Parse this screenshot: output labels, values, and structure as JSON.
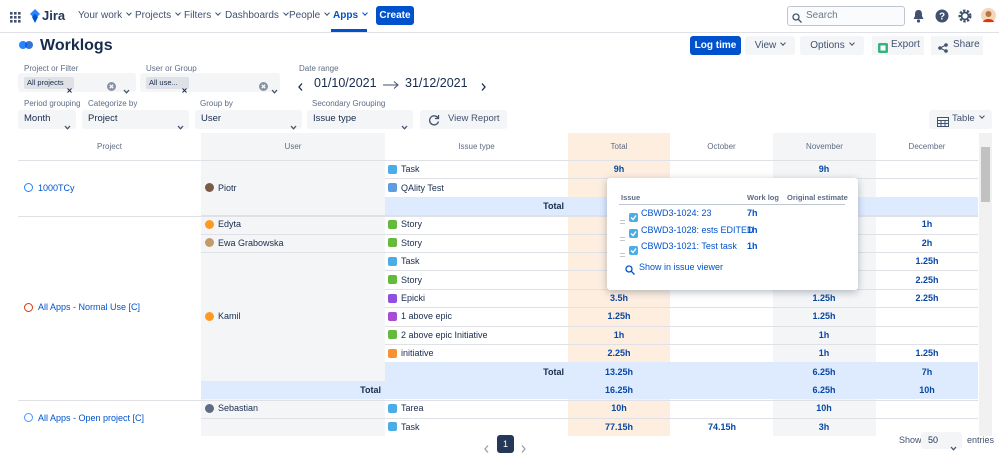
{
  "nav": {
    "product": "Jira",
    "items": [
      "Your work",
      "Projects",
      "Filters",
      "Dashboards",
      "People",
      "Apps"
    ],
    "create": "Create",
    "search": "Search"
  },
  "header": {
    "title": "Worklogs",
    "log_time": "Log time",
    "view": "View",
    "options": "Options",
    "export": "Export",
    "share": "Share"
  },
  "filters": {
    "project_label": "Project or Filter",
    "project_chip": "All projects",
    "user_label": "User or Group",
    "user_chip": "All use...",
    "date_label": "Date range",
    "date_start": "01/10/2021",
    "date_end": "31/12/2021"
  },
  "grouping": [
    {
      "label": "Period grouping",
      "value": "Month"
    },
    {
      "label": "Categorize by",
      "value": "Project"
    },
    {
      "label": "Group by",
      "value": "User"
    },
    {
      "label": "Secondary Grouping",
      "value": "Issue type"
    }
  ],
  "view_report": "View Report",
  "table_toggle": "Table",
  "table": {
    "columns": [
      "Project",
      "User",
      "Issue type",
      "Total",
      "October",
      "November",
      "December"
    ],
    "groups": [
      {
        "project": "1000TCy",
        "icon_color": "#2684ff",
        "users": [
          {
            "user": "Piotr",
            "avatar_color": "#7a5a48",
            "rows": [
              {
                "issue": "Task",
                "icon_color": "#4bade8",
                "values": [
                  "9h",
                  null,
                  "9h",
                  null
                ]
              },
              {
                "issue": "QAlity Test",
                "icon_color": "#5e9ee0"
              }
            ],
            "total": {
              "label": "Total"
            }
          }
        ]
      },
      {
        "project": "All Apps - Normal Use [C]",
        "icon_color": "#de350b",
        "users": [
          {
            "user": "Edyta",
            "avatar_color": "#ff991f",
            "rows": [
              {
                "issue": "Story",
                "icon_color": "#63ba3c",
                "values": [
                  null,
                  null,
                  null,
                  "1h"
                ]
              }
            ]
          },
          {
            "user": "Ewa Grabowska",
            "avatar_color": "#c49a6c",
            "rows": [
              {
                "issue": "Story",
                "icon_color": "#63ba3c",
                "values": [
                  null,
                  null,
                  null,
                  "2h"
                ]
              }
            ]
          },
          {
            "user": "Kamil",
            "avatar_color": "#ff991f",
            "rows": [
              {
                "issue": "Task",
                "icon_color": "#4bade8",
                "values": [
                  null,
                  null,
                  null,
                  "1.25h"
                ]
              },
              {
                "issue": "Story",
                "icon_color": "#63ba3c",
                "values": [
                  null,
                  null,
                  null,
                  "2.25h"
                ]
              },
              {
                "issue": "Epicki",
                "icon_color": "#904ee2",
                "values": [
                  "3.5h",
                  null,
                  "1.25h",
                  "2.25h"
                ]
              },
              {
                "issue": "1 above epic",
                "icon_color": "#a84bd6",
                "values": [
                  "1.25h",
                  null,
                  "1.25h",
                  null
                ]
              },
              {
                "issue": "2 above epic Initiative",
                "icon_color": "#63ba3c",
                "values": [
                  "1h",
                  null,
                  "1h",
                  null
                ]
              },
              {
                "issue": "initiative",
                "icon_color": "#f79232",
                "values": [
                  "2.25h",
                  null,
                  "1h",
                  "1.25h"
                ]
              }
            ],
            "total": {
              "label": "Total",
              "values": [
                "13.25h",
                null,
                "6.25h",
                "7h"
              ]
            }
          }
        ],
        "total": {
          "label": "Total",
          "values": [
            "16.25h",
            null,
            "6.25h",
            "10h"
          ]
        }
      },
      {
        "project": "All Apps - Open project [C]",
        "icon_color": "#4c9aff",
        "users": [
          {
            "user": "Sebastian",
            "avatar_color": "#5e6c84",
            "rows": [
              {
                "issue": "Tarea",
                "icon_color": "#4bade8",
                "values": [
                  "10h",
                  null,
                  "10h",
                  null
                ]
              }
            ]
          },
          {
            "user": null,
            "rows": [
              {
                "issue": "Task",
                "icon_color": "#4bade8",
                "values": [
                  "77.15h",
                  "74.15h",
                  "3h",
                  null
                ]
              }
            ]
          }
        ]
      }
    ]
  },
  "popup": {
    "columns": [
      "Issue",
      "Work log",
      "Original estimate"
    ],
    "rows": [
      {
        "issue": "CBWD3-1024: 23",
        "worklog": "7h"
      },
      {
        "issue": "CBWD3-1028: ests EDITED",
        "worklog": "1h"
      },
      {
        "issue": "CBWD3-1021: Test task",
        "worklog": "1h"
      }
    ],
    "link": "Show in issue viewer"
  },
  "pagination": {
    "page": 1,
    "show": "Show",
    "page_size": 50,
    "entries": "entries"
  }
}
